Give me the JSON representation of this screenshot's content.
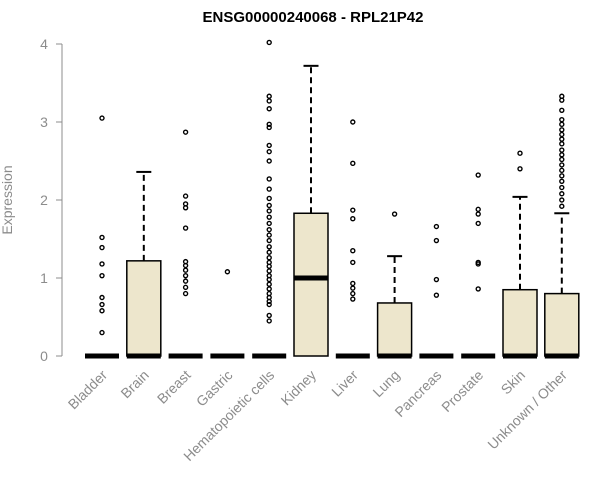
{
  "chart_data": {
    "type": "box",
    "title": "ENSG00000240068 - RPL21P42",
    "xlabel": "",
    "ylabel": "Expression",
    "ylim": [
      0,
      4
    ],
    "yticks": [
      "0",
      "1",
      "2",
      "3",
      "4"
    ],
    "colors": {
      "box_fill": "#ede6cc",
      "stroke": "#000000",
      "axis": "#8c8c8c"
    },
    "categories": [
      "Bladder",
      "Brain",
      "Breast",
      "Gastric",
      "Hematopoietic cells",
      "Kidney",
      "Liver",
      "Lung",
      "Pancreas",
      "Prostate",
      "Skin",
      "Unknown / Other"
    ],
    "boxes": [
      {
        "q1": 0,
        "median": 0,
        "q3": 0,
        "whisker_low": 0,
        "whisker_high": 0,
        "outliers": [
          0.3,
          0.58,
          0.66,
          0.75,
          1.03,
          1.18,
          1.39,
          1.52,
          3.05
        ]
      },
      {
        "q1": 0,
        "median": 0,
        "q3": 1.22,
        "whisker_low": 0,
        "whisker_high": 2.36,
        "outliers": []
      },
      {
        "q1": 0,
        "median": 0,
        "q3": 0,
        "whisker_low": 0,
        "whisker_high": 0,
        "outliers": [
          0.8,
          0.88,
          0.96,
          1.03,
          1.1,
          1.16,
          1.21,
          1.64,
          1.9,
          1.95,
          2.05,
          2.87
        ]
      },
      {
        "q1": 0,
        "median": 0,
        "q3": 0,
        "whisker_low": 0,
        "whisker_high": 0,
        "outliers": [
          1.08
        ]
      },
      {
        "q1": 0,
        "median": 0,
        "q3": 0,
        "whisker_low": 0,
        "whisker_high": 0,
        "outliers": [
          0.45,
          0.52,
          0.66,
          0.7,
          0.75,
          0.8,
          0.86,
          0.92,
          0.98,
          1.03,
          1.09,
          1.15,
          1.2,
          1.26,
          1.33,
          1.4,
          1.48,
          1.55,
          1.62,
          1.7,
          1.78,
          1.86,
          1.93,
          2.02,
          2.14,
          2.27,
          2.5,
          2.62,
          2.7,
          2.93,
          2.97,
          3.17,
          3.27,
          3.33,
          4.02
        ]
      },
      {
        "q1": 0,
        "median": 1.0,
        "q3": 1.83,
        "whisker_low": 0,
        "whisker_high": 3.72,
        "outliers": []
      },
      {
        "q1": 0,
        "median": 0,
        "q3": 0,
        "whisker_low": 0,
        "whisker_high": 0,
        "outliers": [
          0.73,
          0.8,
          0.87,
          0.93,
          1.2,
          1.35,
          1.76,
          1.87,
          2.47,
          3.0
        ]
      },
      {
        "q1": 0,
        "median": 0,
        "q3": 0.68,
        "whisker_low": 0,
        "whisker_high": 1.28,
        "outliers": [
          1.82
        ]
      },
      {
        "q1": 0,
        "median": 0,
        "q3": 0,
        "whisker_low": 0,
        "whisker_high": 0,
        "outliers": [
          0.78,
          0.98,
          1.48,
          1.66
        ]
      },
      {
        "q1": 0,
        "median": 0,
        "q3": 0,
        "whisker_low": 0,
        "whisker_high": 0,
        "outliers": [
          0.86,
          1.18,
          1.2,
          1.7,
          1.82,
          1.88,
          2.32
        ]
      },
      {
        "q1": 0,
        "median": 0,
        "q3": 0.85,
        "whisker_low": 0,
        "whisker_high": 2.04,
        "outliers": [
          2.4,
          2.6
        ]
      },
      {
        "q1": 0,
        "median": 0,
        "q3": 0.8,
        "whisker_low": 0,
        "whisker_high": 1.83,
        "outliers": [
          1.92,
          2.0,
          2.08,
          2.16,
          2.24,
          2.31,
          2.38,
          2.45,
          2.52,
          2.58,
          2.64,
          2.72,
          2.78,
          2.84,
          2.9,
          2.97,
          3.03,
          3.15,
          3.28,
          3.33
        ]
      }
    ]
  }
}
